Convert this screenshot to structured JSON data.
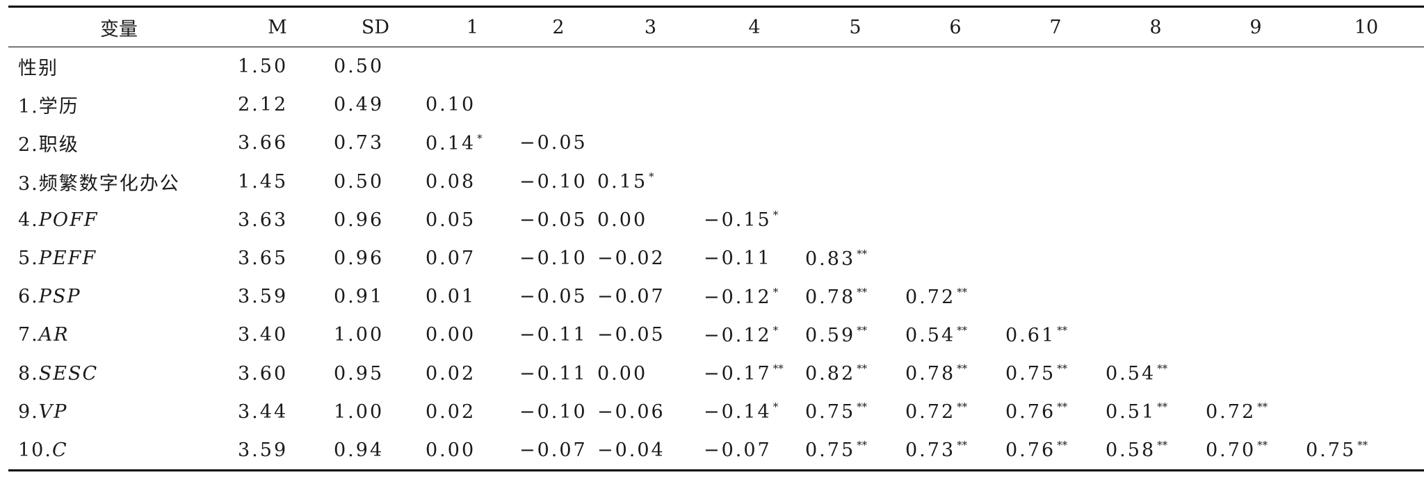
{
  "table": {
    "headers": [
      "变量",
      "M",
      "SD",
      "1",
      "2",
      "3",
      "4",
      "5",
      "6",
      "7",
      "8",
      "9",
      "10"
    ],
    "rows": [
      {
        "prefix": "性别",
        "abbr": "",
        "m": "1.50",
        "sd": "0.50",
        "cells": []
      },
      {
        "prefix": "1.学历",
        "abbr": "",
        "m": "2.12",
        "sd": "0.49",
        "cells": [
          {
            "v": "0.10",
            "s": ""
          }
        ]
      },
      {
        "prefix": "2.职级",
        "abbr": "",
        "m": "3.66",
        "sd": "0.73",
        "cells": [
          {
            "v": "0.14",
            "s": "*"
          },
          {
            "v": "−0.05",
            "s": ""
          }
        ]
      },
      {
        "prefix": "3.频繁数字化办公",
        "abbr": "",
        "m": "1.45",
        "sd": "0.50",
        "cells": [
          {
            "v": "0.08",
            "s": ""
          },
          {
            "v": "−0.10",
            "s": ""
          },
          {
            "v": "0.15",
            "s": "*"
          }
        ]
      },
      {
        "prefix": "4.",
        "abbr": "POFF",
        "m": "3.63",
        "sd": "0.96",
        "cells": [
          {
            "v": "0.05",
            "s": ""
          },
          {
            "v": "−0.05",
            "s": ""
          },
          {
            "v": "0.00",
            "s": ""
          },
          {
            "v": "−0.15",
            "s": "*"
          }
        ]
      },
      {
        "prefix": "5.",
        "abbr": "PEFF",
        "m": "3.65",
        "sd": "0.96",
        "cells": [
          {
            "v": "0.07",
            "s": ""
          },
          {
            "v": "−0.10",
            "s": ""
          },
          {
            "v": "−0.02",
            "s": ""
          },
          {
            "v": "−0.11",
            "s": ""
          },
          {
            "v": "0.83",
            "s": "**"
          }
        ]
      },
      {
        "prefix": "6.",
        "abbr": "PSP",
        "m": "3.59",
        "sd": "0.91",
        "cells": [
          {
            "v": "0.01",
            "s": ""
          },
          {
            "v": "−0.05",
            "s": ""
          },
          {
            "v": "−0.07",
            "s": ""
          },
          {
            "v": "−0.12",
            "s": "*"
          },
          {
            "v": "0.78",
            "s": "**"
          },
          {
            "v": "0.72",
            "s": "**"
          }
        ]
      },
      {
        "prefix": "7.",
        "abbr": "AR",
        "m": "3.40",
        "sd": "1.00",
        "cells": [
          {
            "v": "0.00",
            "s": ""
          },
          {
            "v": "−0.11",
            "s": ""
          },
          {
            "v": "−0.05",
            "s": ""
          },
          {
            "v": "−0.12",
            "s": "*"
          },
          {
            "v": "0.59",
            "s": "**"
          },
          {
            "v": "0.54",
            "s": "**"
          },
          {
            "v": "0.61",
            "s": "**"
          }
        ]
      },
      {
        "prefix": "8.",
        "abbr": "SESC",
        "m": "3.60",
        "sd": "0.95",
        "cells": [
          {
            "v": "0.02",
            "s": ""
          },
          {
            "v": "−0.11",
            "s": ""
          },
          {
            "v": "0.00",
            "s": ""
          },
          {
            "v": "−0.17",
            "s": "**"
          },
          {
            "v": "0.82",
            "s": "**"
          },
          {
            "v": "0.78",
            "s": "**"
          },
          {
            "v": "0.75",
            "s": "**"
          },
          {
            "v": "0.54",
            "s": "**"
          }
        ]
      },
      {
        "prefix": "9.",
        "abbr": "VP",
        "m": "3.44",
        "sd": "1.00",
        "cells": [
          {
            "v": "0.02",
            "s": ""
          },
          {
            "v": "−0.10",
            "s": ""
          },
          {
            "v": "−0.06",
            "s": ""
          },
          {
            "v": "−0.14",
            "s": "*"
          },
          {
            "v": "0.75",
            "s": "**"
          },
          {
            "v": "0.72",
            "s": "**"
          },
          {
            "v": "0.76",
            "s": "**"
          },
          {
            "v": "0.51",
            "s": "**"
          },
          {
            "v": "0.72",
            "s": "**"
          }
        ]
      },
      {
        "prefix": "10.",
        "abbr": "C",
        "m": "3.59",
        "sd": "0.94",
        "cells": [
          {
            "v": "0.00",
            "s": ""
          },
          {
            "v": "−0.07",
            "s": ""
          },
          {
            "v": "−0.04",
            "s": ""
          },
          {
            "v": "−0.07",
            "s": ""
          },
          {
            "v": "0.75",
            "s": "**"
          },
          {
            "v": "0.73",
            "s": "**"
          },
          {
            "v": "0.76",
            "s": "**"
          },
          {
            "v": "0.58",
            "s": "**"
          },
          {
            "v": "0.70",
            "s": "**"
          },
          {
            "v": "0.75",
            "s": "**"
          }
        ]
      }
    ]
  }
}
